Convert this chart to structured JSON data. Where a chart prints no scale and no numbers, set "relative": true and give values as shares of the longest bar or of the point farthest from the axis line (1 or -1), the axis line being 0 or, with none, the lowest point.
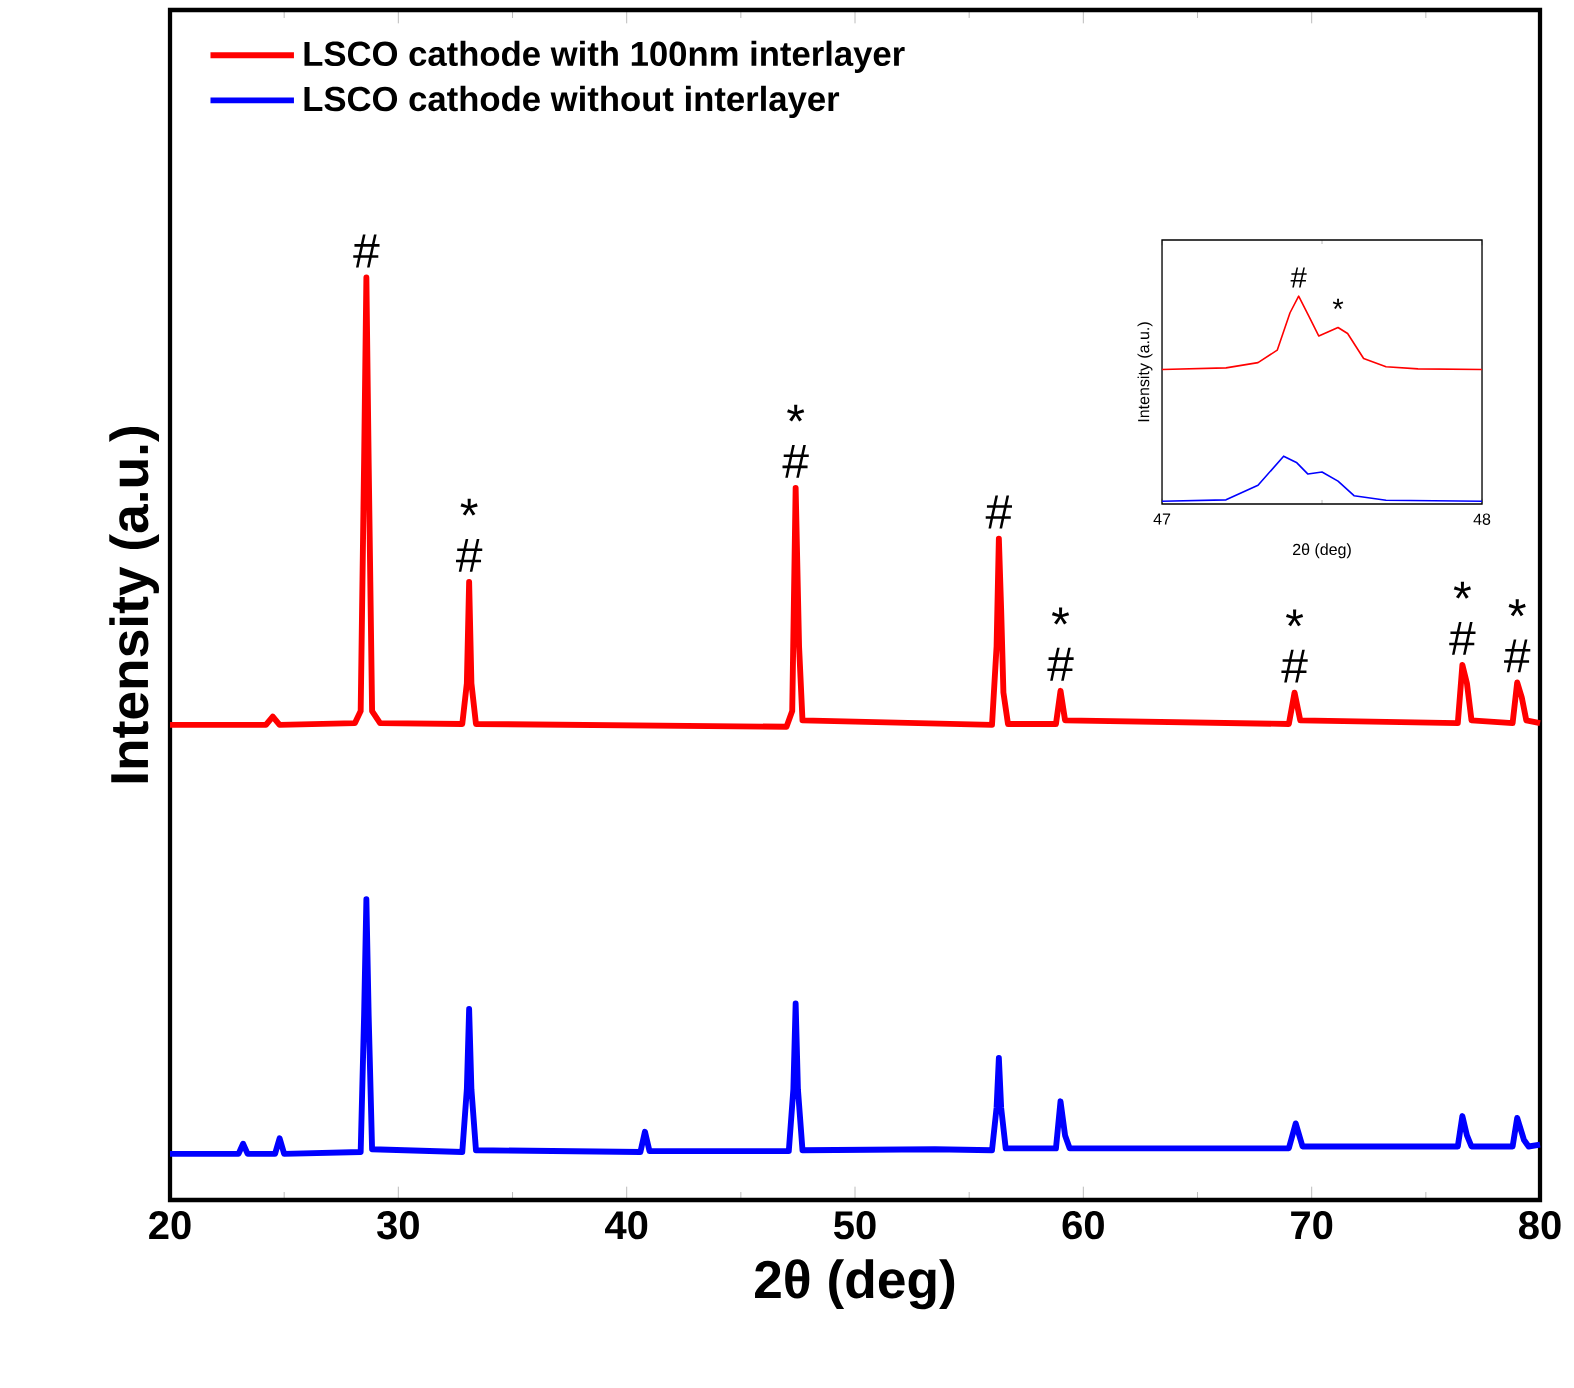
{
  "chart_data": [
    {
      "type": "line",
      "xlabel": "2θ (deg)",
      "ylabel": "Intensity (a.u.)",
      "relative": true,
      "xlim": [
        20,
        80
      ],
      "xticks": [
        20,
        30,
        40,
        50,
        60,
        70,
        80
      ],
      "legend": "top left",
      "series": [
        {
          "name": "LSCO cathode with 100nm interlayer",
          "color": "#ff0000",
          "x": [
            20,
            24.2,
            24.5,
            24.8,
            28.1,
            28.35,
            28.5,
            28.6,
            28.7,
            28.85,
            29.2,
            32.8,
            33.0,
            33.1,
            33.2,
            33.4,
            47.0,
            47.25,
            47.4,
            47.55,
            47.7,
            56.0,
            56.2,
            56.3,
            56.4,
            56.5,
            56.7,
            58.8,
            59.0,
            59.2,
            69.0,
            69.25,
            69.5,
            76.4,
            76.6,
            76.8,
            77.0,
            78.8,
            79.0,
            79.2,
            79.4,
            80
          ],
          "values": [
            0.515,
            0.515,
            0.524,
            0.515,
            0.517,
            0.53,
            0.8,
            1.0,
            0.8,
            0.53,
            0.517,
            0.516,
            0.56,
            0.67,
            0.56,
            0.516,
            0.513,
            0.53,
            0.772,
            0.6,
            0.52,
            0.515,
            0.6,
            0.717,
            0.64,
            0.55,
            0.516,
            0.516,
            0.552,
            0.52,
            0.516,
            0.55,
            0.52,
            0.517,
            0.58,
            0.56,
            0.52,
            0.517,
            0.561,
            0.545,
            0.52,
            0.517
          ]
        },
        {
          "name": "LSCO cathode without interlayer",
          "color": "#0000ff",
          "x": [
            20,
            23.0,
            23.2,
            23.4,
            24.6,
            24.8,
            25.0,
            28.35,
            28.5,
            28.6,
            28.7,
            28.85,
            32.8,
            33.0,
            33.1,
            33.2,
            33.4,
            40.6,
            40.8,
            41.0,
            47.1,
            47.3,
            47.4,
            47.5,
            47.7,
            53.5,
            56.0,
            56.2,
            56.3,
            56.4,
            56.6,
            58.8,
            59.0,
            59.2,
            59.4,
            69.0,
            69.3,
            69.6,
            76.4,
            76.6,
            76.8,
            77.0,
            78.8,
            79.0,
            79.3,
            79.5,
            80
          ],
          "values": [
            0.05,
            0.05,
            0.061,
            0.05,
            0.05,
            0.067,
            0.05,
            0.052,
            0.2,
            0.326,
            0.2,
            0.055,
            0.052,
            0.12,
            0.207,
            0.12,
            0.054,
            0.052,
            0.074,
            0.053,
            0.053,
            0.12,
            0.213,
            0.12,
            0.054,
            0.055,
            0.054,
            0.1,
            0.154,
            0.1,
            0.056,
            0.056,
            0.107,
            0.07,
            0.056,
            0.056,
            0.083,
            0.058,
            0.058,
            0.091,
            0.07,
            0.058,
            0.058,
            0.089,
            0.065,
            0.058,
            0.06
          ]
        }
      ],
      "annotations": [
        {
          "text": "#",
          "x": 28.6,
          "y": 1.0
        },
        {
          "text": "#",
          "x": 33.1,
          "y": 0.67
        },
        {
          "text": "*",
          "x": 33.1,
          "y": 0.67
        },
        {
          "text": "#",
          "x": 47.4,
          "y": 0.772
        },
        {
          "text": "*",
          "x": 47.4,
          "y": 0.772
        },
        {
          "text": "#",
          "x": 56.3,
          "y": 0.717
        },
        {
          "text": "#",
          "x": 59.0,
          "y": 0.552
        },
        {
          "text": "*",
          "x": 59.0,
          "y": 0.552
        },
        {
          "text": "#",
          "x": 69.25,
          "y": 0.55
        },
        {
          "text": "*",
          "x": 69.25,
          "y": 0.55
        },
        {
          "text": "#",
          "x": 76.6,
          "y": 0.58
        },
        {
          "text": "*",
          "x": 76.6,
          "y": 0.58
        },
        {
          "text": "#",
          "x": 79.0,
          "y": 0.561
        },
        {
          "text": "*",
          "x": 79.0,
          "y": 0.561
        }
      ]
    },
    {
      "type": "line",
      "xlabel": "2θ (deg)",
      "ylabel": "Intensity (a.u.)",
      "relative": true,
      "xlim": [
        47,
        48
      ],
      "xticks": [
        47,
        48
      ],
      "series": [
        {
          "color": "#ff0000",
          "x": [
            47,
            47.2,
            47.3,
            47.36,
            47.4,
            47.427,
            47.46,
            47.49,
            47.55,
            47.58,
            47.63,
            47.7,
            47.8,
            48
          ],
          "values": [
            0.647,
            0.655,
            0.68,
            0.74,
            0.92,
            1.0,
            0.9,
            0.808,
            0.849,
            0.82,
            0.7,
            0.66,
            0.65,
            0.647
          ]
        },
        {
          "color": "#0000ff",
          "x": [
            47,
            47.2,
            47.3,
            47.38,
            47.42,
            47.456,
            47.5,
            47.55,
            47.6,
            47.7,
            48
          ],
          "values": [
            0.013,
            0.02,
            0.09,
            0.23,
            0.2,
            0.144,
            0.154,
            0.11,
            0.04,
            0.018,
            0.013
          ]
        }
      ],
      "annotations": [
        {
          "text": "#",
          "x": 47.427,
          "y": 1.0
        },
        {
          "text": "*",
          "x": 47.55,
          "y": 0.849
        }
      ]
    }
  ]
}
